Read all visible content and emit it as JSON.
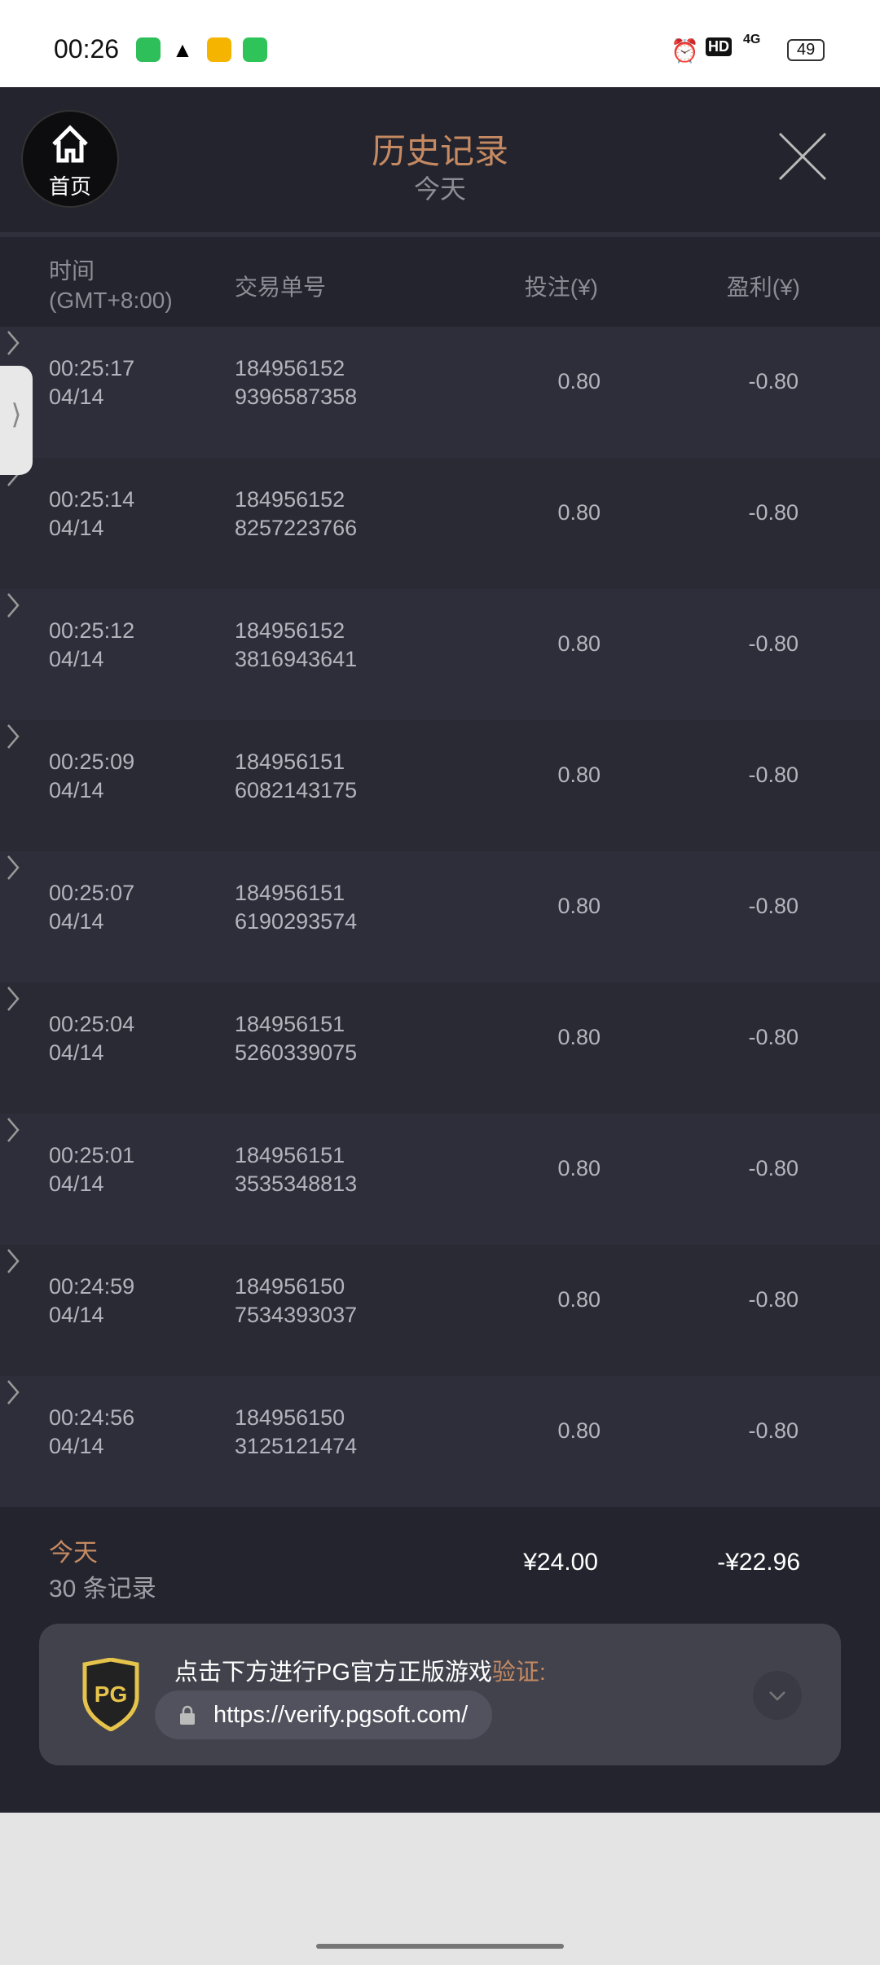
{
  "status_bar": {
    "time": "00:26",
    "battery": "49",
    "network": "4G",
    "hd": "HD",
    "icons": [
      "messages-icon",
      "warning-icon",
      "mail-icon",
      "upload-icon",
      "alarm-icon",
      "hd-icon",
      "signal-icon",
      "battery-icon"
    ]
  },
  "header": {
    "title": "历史记录",
    "subtitle": "今天",
    "home_label": "首页"
  },
  "columns": {
    "time": "时间",
    "timezone": "(GMT+8:00)",
    "order": "交易单号",
    "bet": "投注(¥)",
    "profit": "盈利(¥)"
  },
  "rows": [
    {
      "time": "00:25:17",
      "date": "04/14",
      "id1": "184956152",
      "id2": "9396587358",
      "bet": "0.80",
      "profit": "-0.80"
    },
    {
      "time": "00:25:14",
      "date": "04/14",
      "id1": "184956152",
      "id2": "8257223766",
      "bet": "0.80",
      "profit": "-0.80"
    },
    {
      "time": "00:25:12",
      "date": "04/14",
      "id1": "184956152",
      "id2": "3816943641",
      "bet": "0.80",
      "profit": "-0.80"
    },
    {
      "time": "00:25:09",
      "date": "04/14",
      "id1": "184956151",
      "id2": "6082143175",
      "bet": "0.80",
      "profit": "-0.80"
    },
    {
      "time": "00:25:07",
      "date": "04/14",
      "id1": "184956151",
      "id2": "6190293574",
      "bet": "0.80",
      "profit": "-0.80"
    },
    {
      "time": "00:25:04",
      "date": "04/14",
      "id1": "184956151",
      "id2": "5260339075",
      "bet": "0.80",
      "profit": "-0.80"
    },
    {
      "time": "00:25:01",
      "date": "04/14",
      "id1": "184956151",
      "id2": "3535348813",
      "bet": "0.80",
      "profit": "-0.80"
    },
    {
      "time": "00:24:59",
      "date": "04/14",
      "id1": "184956150",
      "id2": "7534393037",
      "bet": "0.80",
      "profit": "-0.80"
    },
    {
      "time": "00:24:56",
      "date": "04/14",
      "id1": "184956150",
      "id2": "3125121474",
      "bet": "0.80",
      "profit": "-0.80"
    }
  ],
  "summary": {
    "period": "今天",
    "count": "30 条记录",
    "total_bet": "¥24.00",
    "total_profit": "-¥22.96"
  },
  "verify": {
    "message": "点击下方进行PG官方正版游戏",
    "highlight": "验证:",
    "url": "https://verify.pgsoft.com/",
    "logo": "PG"
  },
  "colors": {
    "accent": "#c58a62",
    "background": "#24242e"
  }
}
